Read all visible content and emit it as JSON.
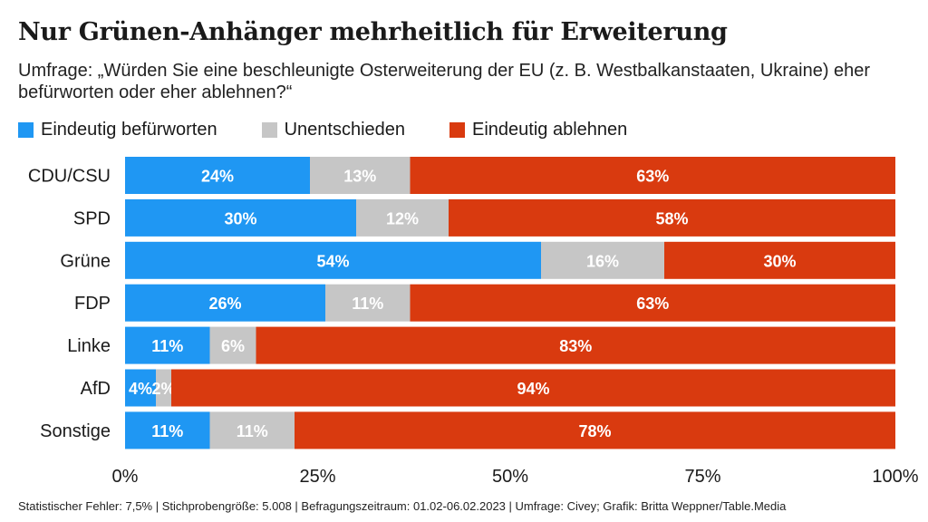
{
  "title": "Nur Grünen-Anhänger mehrheitlich für Erweiterung",
  "subtitle": "Umfrage: „Würden Sie eine beschleunigte Osterweiterung der EU (z. B. Westbalkanstaaten, Ukraine) eher befürworten oder eher ablehnen?“",
  "footer": "Statistischer Fehler: 7,5% | Stichprobengröße: 5.008 | Befragungszeitraum: 01.02-06.02.2023 | Umfrage: Civey; Grafik: Britta Weppner/Table.Media",
  "colors": {
    "befuerworten": "#1f97f3",
    "unentschieden": "#c6c6c6",
    "ablehnen": "#d93a0f"
  },
  "chart_data": {
    "type": "bar",
    "orientation": "horizontal",
    "stacked": true,
    "categories": [
      "CDU/CSU",
      "SPD",
      "Grüne",
      "FDP",
      "Linke",
      "AfD",
      "Sonstige"
    ],
    "series": [
      {
        "name": "Eindeutig befürworten",
        "color": "#1f97f3",
        "values": [
          24,
          30,
          54,
          26,
          11,
          4,
          11
        ]
      },
      {
        "name": "Unentschieden",
        "color": "#c6c6c6",
        "values": [
          13,
          12,
          16,
          11,
          6,
          2,
          11
        ]
      },
      {
        "name": "Eindeutig ablehnen",
        "color": "#d93a0f",
        "values": [
          63,
          58,
          30,
          63,
          83,
          94,
          78
        ]
      }
    ],
    "value_suffix": "%",
    "xlim": [
      0,
      100
    ],
    "xticks": [
      "0%",
      "25%",
      "50%",
      "75%",
      "100%"
    ],
    "legend_position": "top-left",
    "grid": false
  }
}
